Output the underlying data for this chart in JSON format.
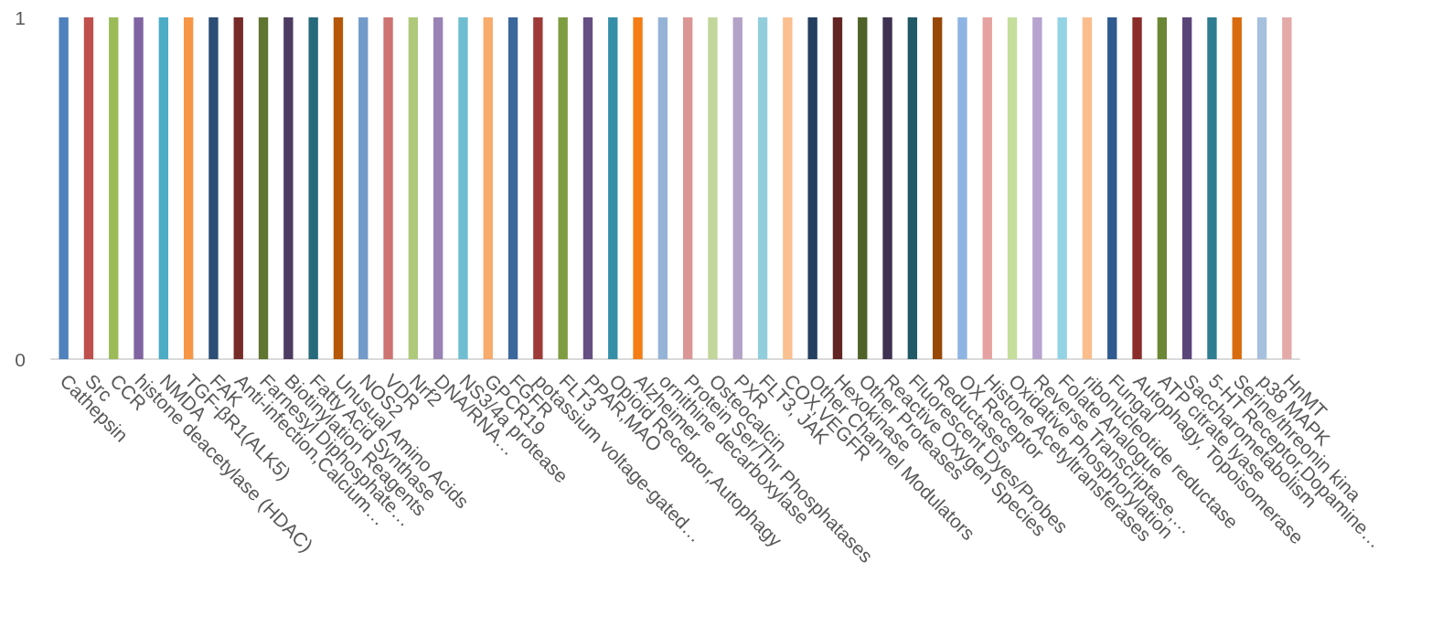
{
  "chart_data": {
    "type": "bar",
    "categories": [
      "Cathepsin",
      "Src",
      "CCR",
      "histone deacetylase (HDAC)",
      "NMDA",
      "TGF-βR1(ALK5)",
      "FAK",
      "Anti-infection,Calcium…",
      "Farnesyl Diphosphate…",
      "Biotinylation Reagents",
      "Fatty Acid Synthase",
      "Unusual Amino Acids",
      "NOS2",
      "VDR",
      "Nrf2",
      "DNA/RNA…",
      "NS3/4a protease",
      "GPCR19",
      "FGFR",
      "potassium voltage-gated…",
      "FLT3",
      "PPAR,MAO",
      "Opioid Receptor,Autophagy",
      "Alzheimer",
      "ornithine decarboxylase",
      "Protein Ser/Thr Phosphatases",
      "Osteocalcin",
      "PXR",
      "FLT3, JAK",
      "COX,VEGFR",
      "Other Channel Modulators",
      "Hexokinase",
      "Other Proteases",
      "Reactive Oxygen Species",
      "Fluorescent Dyes/Probes",
      "Reductases",
      "OX Receptor",
      "Histone Acetyltransferases",
      "Oxidative Phosphorylation",
      "Reverse Transcriptase,…",
      "Folate Analogue",
      "ribonucleotide reductase",
      "Fungal",
      "Autophagy, Topoisomerase",
      "ATP citrate lyase",
      "Saccharometabolism",
      "5-HT Receptor,Dopamine…",
      "Serine/threonin kina",
      "p38 MAPK",
      "HnMT"
    ],
    "values": [
      1,
      1,
      1,
      1,
      1,
      1,
      1,
      1,
      1,
      1,
      1,
      1,
      1,
      1,
      1,
      1,
      1,
      1,
      1,
      1,
      1,
      1,
      1,
      1,
      1,
      1,
      1,
      1,
      1,
      1,
      1,
      1,
      1,
      1,
      1,
      1,
      1,
      1,
      1,
      1,
      1,
      1,
      1,
      1,
      1,
      1,
      1,
      1,
      1,
      1
    ],
    "colors": [
      "#4f81bd",
      "#c0504d",
      "#9bbb59",
      "#8064a2",
      "#4bacc6",
      "#f79646",
      "#2c4d75",
      "#772c2a",
      "#5f7530",
      "#4d3b62",
      "#276a7c",
      "#b65708",
      "#729aca",
      "#cd7371",
      "#afc97a",
      "#9983b5",
      "#6fbdd1",
      "#f9ab6b",
      "#3a679c",
      "#9e3b38",
      "#7e9c40",
      "#664f83",
      "#358fa6",
      "#f47d15",
      "#95b3d7",
      "#d99694",
      "#c3d69b",
      "#b3a2c7",
      "#92cddc",
      "#fac090",
      "#243f60",
      "#632523",
      "#4f6228",
      "#3f3151",
      "#215967",
      "#974806",
      "#8eb4e3",
      "#e6a2a0",
      "#c5de9c",
      "#b6a3cf",
      "#93d3e3",
      "#fbbd8c",
      "#2e5a8f",
      "#8b2d2a",
      "#6b8634",
      "#5a4578",
      "#2e7d91",
      "#d96b0f",
      "#a7c0de",
      "#e4aaa8"
    ],
    "ylim": [
      0,
      1
    ],
    "yticks": [
      0,
      1
    ]
  }
}
